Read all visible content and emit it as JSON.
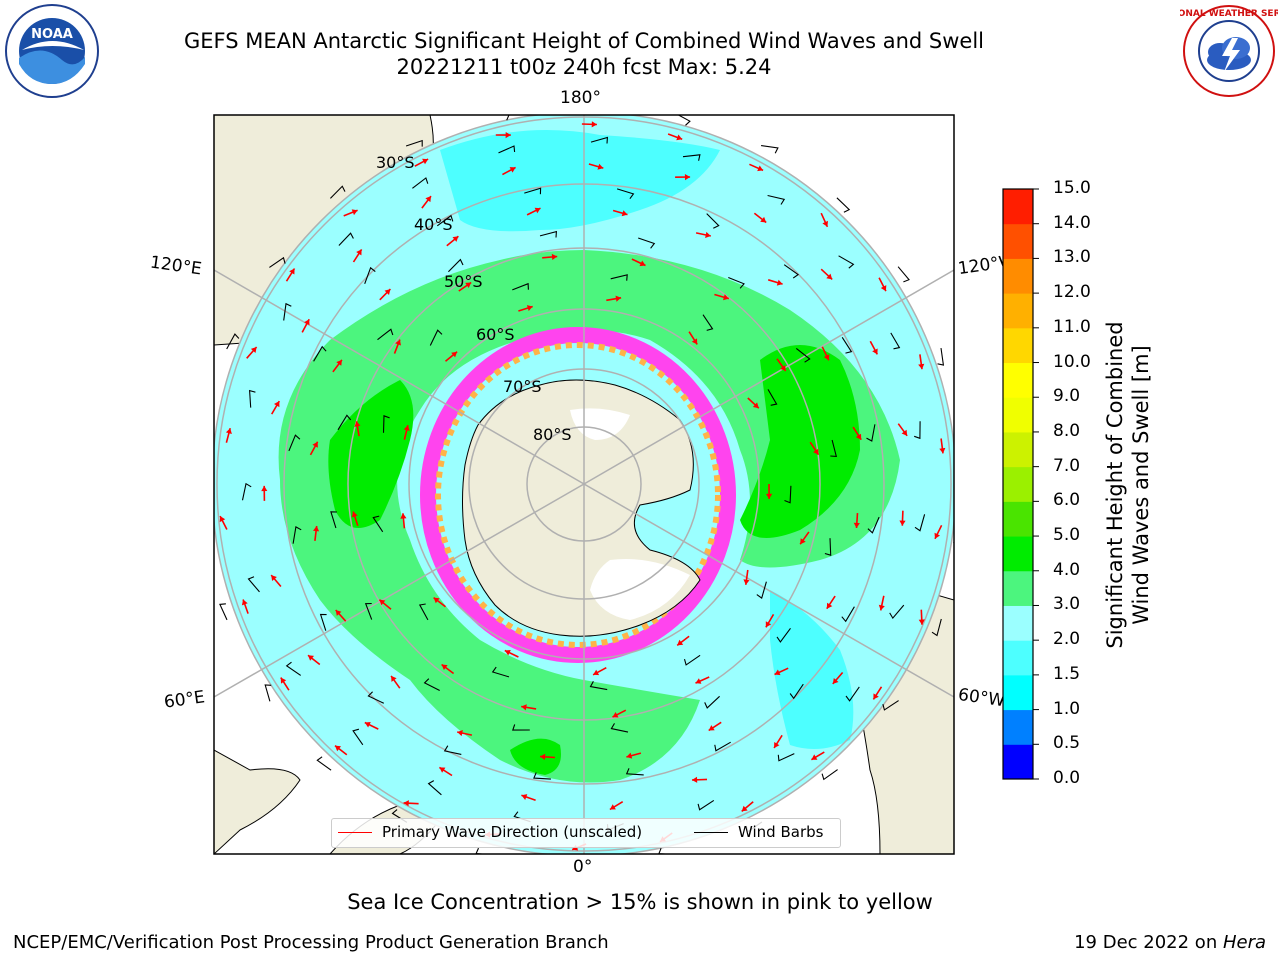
{
  "title": {
    "line1": "GEFS MEAN Antarctic Significant Height of Combined Wind Waves and Swell",
    "line2": "20221211 t00z 240h fcst   Max: 5.24"
  },
  "map": {
    "projection": "south-polar-stereographic",
    "longitude_labels": {
      "top": "180°",
      "bottom": "0°",
      "left_upper": "120°E",
      "left_lower": "60°E",
      "right_upper": "120°W",
      "right_lower": "60°W"
    },
    "latitude_labels": [
      "30°S",
      "40°S",
      "50°S",
      "60°S",
      "70°S",
      "80°S"
    ],
    "colors": {
      "land": "#efedda",
      "ocean_2_3m": "#9bffff",
      "ocean_1_5_2m": "#4dffff",
      "ocean_3_4m": "#4cf57e",
      "ocean_4_5m": "#00ec00",
      "sea_ice": "#ff44ee",
      "sea_ice_edge": "#ffb347",
      "wave_arrow": "#ff0000",
      "wind_barb": "#000000",
      "grid": "#b0b0b0"
    }
  },
  "colorbar": {
    "title_line1": "Significant Height of Combined",
    "title_line2": "Wind Waves and Swell [m]",
    "tick_labels": [
      "0.0",
      "0.5",
      "1.0",
      "1.5",
      "2.0",
      "3.0",
      "4.0",
      "5.0",
      "6.0",
      "7.0",
      "8.0",
      "9.0",
      "10.0",
      "11.0",
      "12.0",
      "13.0",
      "14.0",
      "15.0"
    ],
    "colors": [
      "#0000ff",
      "#0080ff",
      "#00ffff",
      "#4dffff",
      "#9bffff",
      "#4cf57e",
      "#00ec00",
      "#4ae400",
      "#9bf000",
      "#ccf200",
      "#f0ff00",
      "#ffff00",
      "#ffd700",
      "#ffb000",
      "#ff8c00",
      "#ff5000",
      "#ff1e00"
    ]
  },
  "legend": {
    "primary_wave": "Primary Wave Direction (unscaled)",
    "wind_barbs": "Wind Barbs"
  },
  "notes": {
    "sea_ice": "Sea Ice Concentration > 15% is shown in pink to yellow"
  },
  "footer": {
    "left": "NCEP/EMC/Verification Post Processing Product Generation Branch",
    "date": "19 Dec 2022 on ",
    "machine": "Hera"
  },
  "logos": {
    "left": "NOAA",
    "right": "NATIONAL WEATHER SERVICE"
  }
}
